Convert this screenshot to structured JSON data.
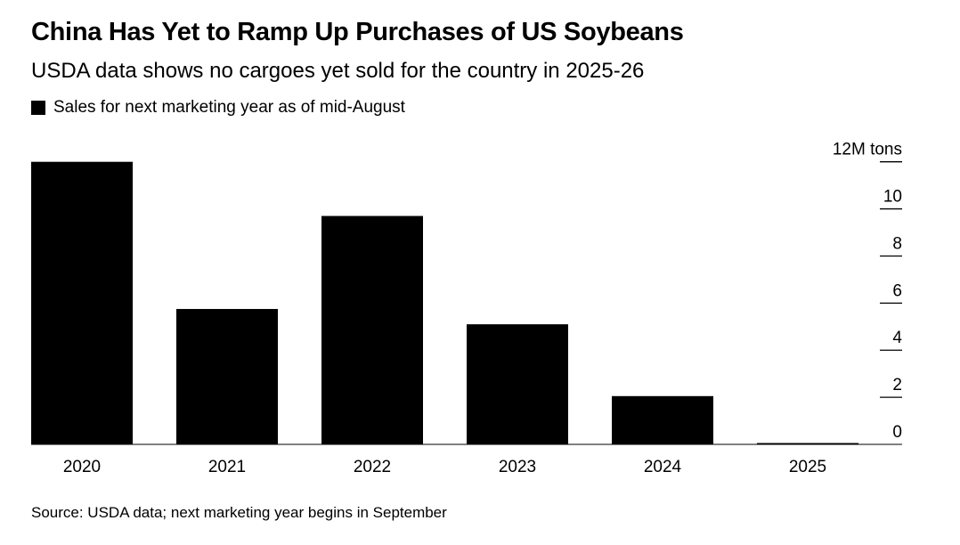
{
  "chart_data": {
    "type": "bar",
    "title": "China Has Yet to Ramp Up Purchases of US Soybeans",
    "subtitle": "USDA data shows no cargoes yet sold for the country in 2025-26",
    "legend": [
      {
        "name": "Sales for next marketing year as of mid-August",
        "color": "#000000"
      }
    ],
    "legend_placement": "top-left",
    "categories": [
      "2020",
      "2021",
      "2022",
      "2023",
      "2024",
      "2025"
    ],
    "values": [
      12.0,
      5.75,
      9.7,
      5.1,
      2.05,
      0
    ],
    "ylim": [
      0,
      12
    ],
    "yticks": [
      "0",
      "2",
      "4",
      "6",
      "8",
      "10",
      "12M tons"
    ],
    "ytick_values": [
      0,
      2,
      4,
      6,
      8,
      10,
      12
    ],
    "y_axis_side": "right",
    "grid": false,
    "bar_color": "#000000",
    "source": "Source: USDA data; next marketing year begins in September"
  }
}
